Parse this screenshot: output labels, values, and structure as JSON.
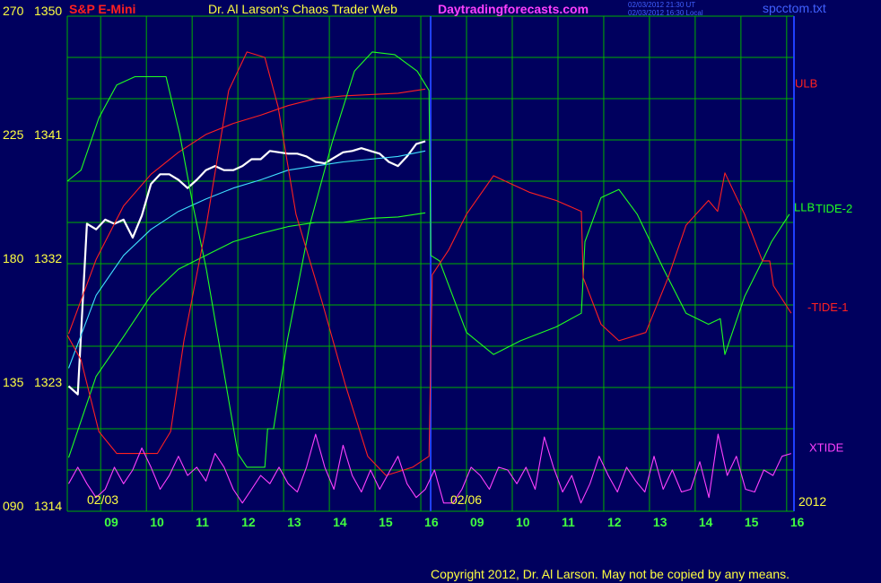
{
  "chart_data": {
    "type": "line",
    "title": "S&P E-Mini",
    "subtitle": "Dr. Al Larson's Chaos Trader Web",
    "site": "Daytradingforecasts.com",
    "timestamps": [
      "02/03/2012 21:30 UT",
      "02/03/2012 16:30 Local"
    ],
    "file": "spcctom.txt",
    "copyright": "Copyright 2012, Dr. Al Larson. May not be copied by any means.",
    "date_labels": [
      "02/03",
      "02/06",
      "2012"
    ],
    "xlim": [
      0.27,
      16.16
    ],
    "xticks": [
      {
        "value": 1,
        "label": "09"
      },
      {
        "value": 2,
        "label": "10"
      },
      {
        "value": 3,
        "label": "11"
      },
      {
        "value": 4,
        "label": "12"
      },
      {
        "value": 5,
        "label": "13"
      },
      {
        "value": 6,
        "label": "14"
      },
      {
        "value": 7,
        "label": "15"
      },
      {
        "value": 8,
        "label": "16"
      },
      {
        "value": 9,
        "label": "09"
      },
      {
        "value": 10,
        "label": "10"
      },
      {
        "value": 11,
        "label": "11"
      },
      {
        "value": 12,
        "label": "12"
      },
      {
        "value": 13,
        "label": "13"
      },
      {
        "value": 14,
        "label": "14"
      },
      {
        "value": 15,
        "label": "15"
      },
      {
        "value": 16,
        "label": "16"
      }
    ],
    "ylim": [
      1314,
      1350
    ],
    "yticks": [
      1314,
      1323,
      1332,
      1341,
      1350
    ],
    "ygrid": [
      1314,
      1317,
      1320,
      1323,
      1326,
      1329,
      1332,
      1335,
      1338,
      1341,
      1344,
      1347,
      1350
    ],
    "y2lim": [
      90,
      270
    ],
    "y2ticks": [
      {
        "value": 90,
        "label": "090"
      },
      135,
      180,
      225,
      270
    ],
    "grid": true,
    "series": [
      {
        "color": "#ffffff",
        "x": [
          0.3,
          0.5,
          0.7,
          0.9,
          1.1,
          1.3,
          1.5,
          1.7,
          1.9,
          2.1,
          2.3,
          2.5,
          2.7,
          2.9,
          3.1,
          3.3,
          3.5,
          3.7,
          3.9,
          4.1,
          4.3,
          4.5,
          4.7,
          4.9,
          5.1,
          5.3,
          5.5,
          5.7,
          5.9,
          6.1,
          6.3,
          6.5,
          6.7,
          6.9,
          7.1,
          7.3,
          7.5,
          7.7,
          7.9,
          8.1
        ],
        "values": [
          1323.1,
          1322.5,
          1334.9,
          1334.5,
          1335.2,
          1334.9,
          1335.2,
          1333.9,
          1335.5,
          1337.8,
          1338.5,
          1338.5,
          1338.1,
          1337.5,
          1338.1,
          1338.8,
          1339.1,
          1338.8,
          1338.8,
          1339.1,
          1339.6,
          1339.6,
          1340.2,
          1340.1,
          1340.0,
          1340.0,
          1339.8,
          1339.4,
          1339.3,
          1339.7,
          1340.1,
          1340.2,
          1340.4,
          1340.2,
          1340.0,
          1339.4,
          1339.1,
          1339.8,
          1340.7,
          1340.9
        ]
      },
      {
        "name": "ULB",
        "color": "#ff2020",
        "x": [
          0.3,
          0.9,
          1.5,
          2.1,
          2.7,
          3.3,
          3.9,
          4.5,
          5.1,
          5.7,
          6.3,
          6.9,
          7.5,
          8.1
        ],
        "values": [
          1326.9,
          1332.3,
          1336.2,
          1338.5,
          1340.1,
          1341.4,
          1342.2,
          1342.8,
          1343.5,
          1344.0,
          1344.2,
          1344.3,
          1344.4,
          1344.7
        ]
      },
      {
        "color": "#40e0ff",
        "x": [
          0.3,
          0.9,
          1.5,
          2.1,
          2.7,
          3.3,
          3.9,
          4.5,
          5.1,
          5.7,
          6.3,
          6.9,
          7.5,
          8.1
        ],
        "values": [
          1324.4,
          1329.7,
          1332.6,
          1334.5,
          1335.8,
          1336.7,
          1337.5,
          1338.1,
          1338.8,
          1339.1,
          1339.4,
          1339.6,
          1339.8,
          1340.2
        ]
      },
      {
        "name": "LLB",
        "color": "#20ff20",
        "x": [
          0.3,
          0.9,
          1.5,
          2.1,
          2.7,
          3.3,
          3.9,
          4.5,
          5.1,
          5.7,
          6.3,
          6.9,
          7.5,
          8.1
        ],
        "values": [
          1317.9,
          1323.8,
          1326.7,
          1329.7,
          1331.6,
          1332.6,
          1333.6,
          1334.2,
          1334.7,
          1335.0,
          1335.0,
          1335.3,
          1335.4,
          1335.7
        ]
      },
      {
        "name": "TIDE-2",
        "color": "#20ff20",
        "axis": "y2",
        "x": [
          0.27,
          0.57,
          0.96,
          1.35,
          1.75,
          2.43,
          2.73,
          3.02,
          3.31,
          3.71,
          4.0,
          4.2,
          4.59,
          4.65,
          4.78,
          5.08,
          5.57,
          6.06,
          6.55,
          6.94,
          7.43,
          7.92,
          8.18,
          8.22,
          8.41,
          9.0,
          9.59,
          10.18,
          10.96,
          11.51,
          11.59,
          11.94,
          12.33,
          12.73,
          13.31,
          13.8,
          14.29,
          14.55,
          14.65,
          15.08,
          15.47,
          15.67,
          16.06
        ],
        "values": [
          210,
          214,
          233,
          245,
          248,
          248,
          227,
          201,
          178,
          139,
          111,
          106,
          106,
          120,
          120,
          152,
          194,
          224,
          250,
          257,
          256,
          250,
          243,
          183,
          181,
          155,
          147,
          152,
          157,
          162,
          188,
          204,
          207,
          198,
          178,
          162,
          158,
          160,
          147,
          168,
          181,
          188,
          198
        ]
      },
      {
        "name": "-TIDE-1",
        "color": "#ff2020",
        "axis": "y2",
        "x": [
          0.27,
          0.57,
          0.96,
          1.35,
          2.24,
          2.53,
          2.82,
          3.31,
          3.8,
          4.2,
          4.59,
          4.88,
          5.27,
          5.86,
          6.35,
          6.84,
          7.24,
          7.82,
          8.18,
          8.25,
          8.61,
          9.0,
          9.59,
          9.98,
          10.37,
          10.96,
          11.51,
          11.55,
          11.94,
          12.33,
          12.92,
          13.41,
          13.8,
          14.29,
          14.49,
          14.65,
          15.08,
          15.47,
          15.63,
          15.71,
          16.1
        ],
        "values": [
          154,
          145,
          119,
          111,
          111,
          119,
          152,
          194,
          243,
          257,
          255,
          237,
          198,
          165,
          136,
          110,
          103,
          106,
          110,
          176,
          185,
          198,
          212,
          209,
          206,
          203,
          199,
          175,
          158,
          152,
          155,
          175,
          194,
          203,
          199,
          213,
          198,
          181,
          181,
          172,
          162
        ]
      },
      {
        "name": "XTIDE",
        "color": "#ff40ff",
        "axis": "y2",
        "x": [
          0.3,
          0.5,
          0.7,
          0.9,
          1.1,
          1.3,
          1.5,
          1.7,
          1.9,
          2.1,
          2.3,
          2.5,
          2.7,
          2.9,
          3.1,
          3.3,
          3.5,
          3.7,
          3.9,
          4.1,
          4.3,
          4.5,
          4.7,
          4.9,
          5.1,
          5.3,
          5.5,
          5.7,
          5.9,
          6.1,
          6.3,
          6.5,
          6.7,
          6.9,
          7.1,
          7.3,
          7.5,
          7.7,
          7.9,
          8.1,
          8.3,
          8.5,
          8.7,
          8.9,
          9.1,
          9.3,
          9.5,
          9.7,
          9.9,
          10.1,
          10.3,
          10.5,
          10.7,
          10.9,
          11.1,
          11.3,
          11.5,
          11.7,
          11.9,
          12.1,
          12.3,
          12.5,
          12.7,
          12.9,
          13.1,
          13.3,
          13.5,
          13.7,
          13.9,
          14.1,
          14.3,
          14.5,
          14.7,
          14.9,
          15.1,
          15.3,
          15.5,
          15.7,
          15.9,
          16.1
        ],
        "values": [
          100,
          106,
          100,
          95,
          98,
          106,
          100,
          105,
          113,
          106,
          98,
          103,
          110,
          103,
          106,
          101,
          111,
          106,
          98,
          93,
          98,
          103,
          100,
          106,
          100,
          97,
          106,
          118,
          106,
          98,
          114,
          103,
          97,
          105,
          98,
          104,
          110,
          100,
          95,
          98,
          105,
          93,
          93,
          98,
          106,
          103,
          98,
          106,
          105,
          100,
          106,
          98,
          117,
          106,
          97,
          103,
          93,
          100,
          110,
          103,
          97,
          106,
          101,
          97,
          110,
          98,
          105,
          97,
          98,
          108,
          95,
          118,
          103,
          110,
          98,
          97,
          105,
          103,
          110,
          111
        ]
      }
    ]
  }
}
